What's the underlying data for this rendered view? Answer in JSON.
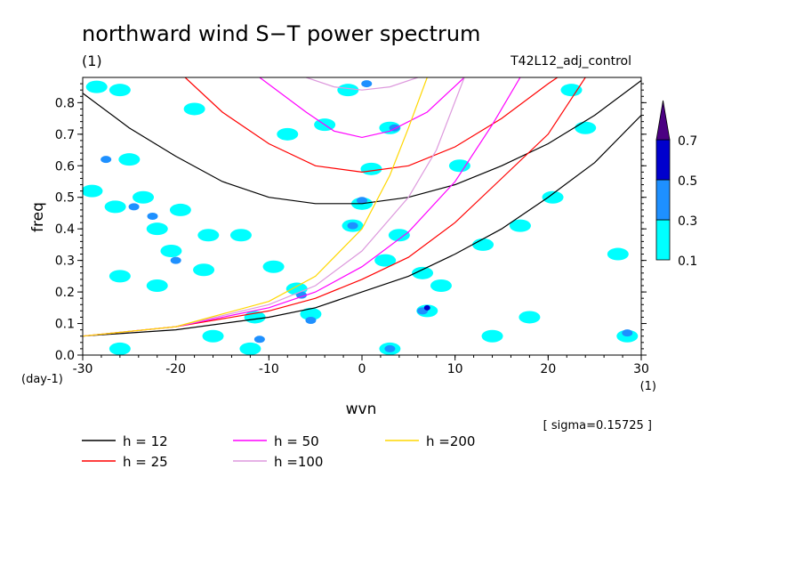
{
  "chart_data": {
    "type": "heatmap",
    "title": "northward wind S−T power spectrum",
    "units_label": "(1)",
    "run_label": "T42L12_adj_control",
    "xlabel": "wvn",
    "xunit": "(1)",
    "ylabel": "freq",
    "yunit": "(day-1)",
    "xlim": [
      -30,
      30
    ],
    "ylim": [
      0,
      0.88
    ],
    "x_ticks": [
      -30,
      -20,
      -10,
      0,
      10,
      20,
      30
    ],
    "y_ticks": [
      0.0,
      0.1,
      0.2,
      0.3,
      0.4,
      0.5,
      0.6,
      0.7,
      0.8
    ],
    "sigma_text": "[ sigma=0.15725 ]",
    "colorbar": {
      "levels": [
        0.1,
        0.3,
        0.5,
        0.7
      ],
      "labels": [
        "0.1",
        "0.3",
        "0.5",
        "0.7"
      ],
      "colors": [
        "#00ffff",
        "#1e90ff",
        "#0000cd",
        "#4b0082"
      ]
    },
    "shaded_regions": [
      {
        "level": 0.1,
        "x": -28.5,
        "y": 0.85
      },
      {
        "level": 0.1,
        "x": -26.0,
        "y": 0.84
      },
      {
        "level": 0.1,
        "x": -25.0,
        "y": 0.62
      },
      {
        "level": 0.3,
        "x": -27.5,
        "y": 0.62
      },
      {
        "level": 0.1,
        "x": -29.0,
        "y": 0.52
      },
      {
        "level": 0.1,
        "x": -26.5,
        "y": 0.47
      },
      {
        "level": 0.1,
        "x": -23.5,
        "y": 0.5
      },
      {
        "level": 0.3,
        "x": -24.5,
        "y": 0.47
      },
      {
        "level": 0.1,
        "x": -22.0,
        "y": 0.4
      },
      {
        "level": 0.3,
        "x": -22.5,
        "y": 0.44
      },
      {
        "level": 0.1,
        "x": -19.5,
        "y": 0.46
      },
      {
        "level": 0.1,
        "x": -20.5,
        "y": 0.33
      },
      {
        "level": 0.3,
        "x": -20.0,
        "y": 0.3
      },
      {
        "level": 0.1,
        "x": -16.5,
        "y": 0.38
      },
      {
        "level": 0.1,
        "x": -13.0,
        "y": 0.38
      },
      {
        "level": 0.1,
        "x": -26.0,
        "y": 0.25
      },
      {
        "level": 0.1,
        "x": -22.0,
        "y": 0.22
      },
      {
        "level": 0.1,
        "x": -17.0,
        "y": 0.27
      },
      {
        "level": 0.1,
        "x": -9.5,
        "y": 0.28
      },
      {
        "level": 0.1,
        "x": -7.0,
        "y": 0.21
      },
      {
        "level": 0.3,
        "x": -6.5,
        "y": 0.19
      },
      {
        "level": 0.1,
        "x": -5.5,
        "y": 0.13
      },
      {
        "level": 0.3,
        "x": -5.5,
        "y": 0.11
      },
      {
        "level": 0.1,
        "x": -11.5,
        "y": 0.12
      },
      {
        "level": 0.1,
        "x": -16.0,
        "y": 0.06
      },
      {
        "level": 0.1,
        "x": -12.0,
        "y": 0.02
      },
      {
        "level": 0.3,
        "x": -11.0,
        "y": 0.05
      },
      {
        "level": 0.1,
        "x": -26.0,
        "y": 0.02
      },
      {
        "level": 0.1,
        "x": -18.0,
        "y": 0.78
      },
      {
        "level": 0.1,
        "x": -8.0,
        "y": 0.7
      },
      {
        "level": 0.1,
        "x": -4.0,
        "y": 0.73
      },
      {
        "level": 0.1,
        "x": -1.5,
        "y": 0.84
      },
      {
        "level": 0.3,
        "x": 0.5,
        "y": 0.86
      },
      {
        "level": 0.1,
        "x": 3.0,
        "y": 0.72
      },
      {
        "level": 0.3,
        "x": 3.5,
        "y": 0.72
      },
      {
        "level": 0.1,
        "x": 1.0,
        "y": 0.59
      },
      {
        "level": 0.1,
        "x": 0.0,
        "y": 0.48
      },
      {
        "level": 0.3,
        "x": 0.0,
        "y": 0.49
      },
      {
        "level": 0.1,
        "x": -1.0,
        "y": 0.41
      },
      {
        "level": 0.3,
        "x": -1.0,
        "y": 0.41
      },
      {
        "level": 0.1,
        "x": 4.0,
        "y": 0.38
      },
      {
        "level": 0.1,
        "x": 2.5,
        "y": 0.3
      },
      {
        "level": 0.1,
        "x": 6.5,
        "y": 0.26
      },
      {
        "level": 0.1,
        "x": 8.5,
        "y": 0.22
      },
      {
        "level": 0.1,
        "x": 7.0,
        "y": 0.14
      },
      {
        "level": 0.3,
        "x": 6.5,
        "y": 0.14
      },
      {
        "level": 0.5,
        "x": 7.0,
        "y": 0.15
      },
      {
        "level": 0.1,
        "x": 3.0,
        "y": 0.02
      },
      {
        "level": 0.3,
        "x": 3.0,
        "y": 0.02
      },
      {
        "level": 0.1,
        "x": 10.5,
        "y": 0.6
      },
      {
        "level": 0.1,
        "x": 13.0,
        "y": 0.35
      },
      {
        "level": 0.1,
        "x": 18.0,
        "y": 0.12
      },
      {
        "level": 0.1,
        "x": 17.0,
        "y": 0.41
      },
      {
        "level": 0.1,
        "x": 20.5,
        "y": 0.5
      },
      {
        "level": 0.1,
        "x": 22.5,
        "y": 0.84
      },
      {
        "level": 0.1,
        "x": 27.5,
        "y": 0.32
      },
      {
        "level": 0.1,
        "x": 28.5,
        "y": 0.06
      },
      {
        "level": 0.3,
        "x": 28.5,
        "y": 0.07
      },
      {
        "level": 0.1,
        "x": 14.0,
        "y": 0.06
      },
      {
        "level": 0.1,
        "x": 24.0,
        "y": 0.72
      }
    ],
    "series": [
      {
        "name": "h = 12",
        "color": "#000000"
      },
      {
        "name": "h = 25",
        "color": "#ff0000"
      },
      {
        "name": "h = 50",
        "color": "#ff00ff"
      },
      {
        "name": "h =100",
        "color": "#dd99dd"
      },
      {
        "name": "h =200",
        "color": "#ffd700"
      }
    ],
    "dispersion_curves": [
      {
        "h": 12,
        "color": "#000000",
        "kelvin": [
          [
            -30,
            0.06
          ],
          [
            -20,
            0.08
          ],
          [
            -10,
            0.12
          ],
          [
            -5,
            0.15
          ],
          [
            0,
            0.2
          ],
          [
            5,
            0.25
          ],
          [
            10,
            0.32
          ],
          [
            15,
            0.4
          ],
          [
            20,
            0.5
          ],
          [
            25,
            0.61
          ],
          [
            30,
            0.76
          ]
        ],
        "ig": [
          [
            -30,
            0.83
          ],
          [
            -25,
            0.72
          ],
          [
            -20,
            0.63
          ],
          [
            -15,
            0.55
          ],
          [
            -10,
            0.5
          ],
          [
            -5,
            0.48
          ],
          [
            0,
            0.48
          ],
          [
            5,
            0.5
          ],
          [
            10,
            0.54
          ],
          [
            15,
            0.6
          ],
          [
            20,
            0.67
          ],
          [
            25,
            0.76
          ],
          [
            30,
            0.87
          ]
        ]
      },
      {
        "h": 25,
        "color": "#ff0000",
        "kelvin": [
          [
            -30,
            0.06
          ],
          [
            -20,
            0.09
          ],
          [
            -10,
            0.14
          ],
          [
            -5,
            0.18
          ],
          [
            0,
            0.24
          ],
          [
            5,
            0.31
          ],
          [
            10,
            0.42
          ],
          [
            15,
            0.56
          ],
          [
            20,
            0.7
          ],
          [
            24,
            0.88
          ]
        ],
        "ig": [
          [
            -19,
            0.88
          ],
          [
            -15,
            0.77
          ],
          [
            -10,
            0.67
          ],
          [
            -5,
            0.6
          ],
          [
            0,
            0.58
          ],
          [
            5,
            0.6
          ],
          [
            10,
            0.66
          ],
          [
            15,
            0.75
          ],
          [
            20,
            0.86
          ],
          [
            21,
            0.88
          ]
        ]
      },
      {
        "h": 50,
        "color": "#ff00ff",
        "kelvin": [
          [
            -30,
            0.06
          ],
          [
            -20,
            0.09
          ],
          [
            -10,
            0.15
          ],
          [
            -5,
            0.2
          ],
          [
            0,
            0.28
          ],
          [
            5,
            0.39
          ],
          [
            10,
            0.55
          ],
          [
            14,
            0.73
          ],
          [
            17,
            0.88
          ]
        ],
        "ig": [
          [
            -11,
            0.88
          ],
          [
            -6,
            0.77
          ],
          [
            -3,
            0.71
          ],
          [
            0,
            0.69
          ],
          [
            3,
            0.71
          ],
          [
            7,
            0.77
          ],
          [
            11,
            0.88
          ]
        ]
      },
      {
        "h": 100,
        "color": "#dd99dd",
        "kelvin": [
          [
            -30,
            0.06
          ],
          [
            -20,
            0.09
          ],
          [
            -10,
            0.16
          ],
          [
            -5,
            0.22
          ],
          [
            0,
            0.33
          ],
          [
            5,
            0.5
          ],
          [
            8,
            0.65
          ],
          [
            11,
            0.88
          ]
        ],
        "ig": [
          [
            -6,
            0.88
          ],
          [
            -3,
            0.85
          ],
          [
            0,
            0.84
          ],
          [
            3,
            0.85
          ],
          [
            6,
            0.88
          ]
        ]
      },
      {
        "h": 200,
        "color": "#ffd700",
        "kelvin": [
          [
            -30,
            0.06
          ],
          [
            -20,
            0.09
          ],
          [
            -10,
            0.17
          ],
          [
            -5,
            0.25
          ],
          [
            0,
            0.4
          ],
          [
            3,
            0.57
          ],
          [
            5,
            0.72
          ],
          [
            7,
            0.88
          ]
        ]
      }
    ]
  }
}
